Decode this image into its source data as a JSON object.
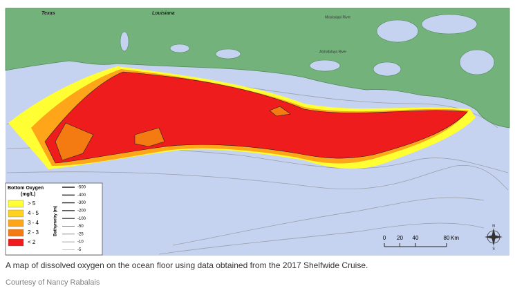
{
  "map": {
    "labels": {
      "texas": "Texas",
      "louisiana": "Louisiana",
      "mississippi": "Mississippi River",
      "atchafalaya": "Atchafalaya River"
    },
    "legend": {
      "title": "Bottom Oxygen",
      "unit": "(mg/L)",
      "items": [
        {
          "label": "> 5",
          "color": "#ffff33"
        },
        {
          "label": "4 - 5",
          "color": "#ffd21f"
        },
        {
          "label": "3 - 4",
          "color": "#ffa51a"
        },
        {
          "label": "2 - 3",
          "color": "#f47a12"
        },
        {
          "label": "< 2",
          "color": "#ee1c1c"
        }
      ],
      "bathymetry_title": "Bathymetry (m)",
      "depths": [
        -500,
        -400,
        -300,
        -200,
        -100,
        -50,
        -25,
        -10,
        -5
      ]
    },
    "scale": {
      "ticks": [
        0,
        20,
        40,
        80
      ],
      "unit": "Km"
    },
    "compass": {
      "north": "N",
      "south": "S"
    }
  },
  "caption": "A map of dissolved oxygen on the ocean floor using data obtained from the 2017 Shelfwide Cruise.",
  "credit": "Courtesy of Nancy Rabalais"
}
